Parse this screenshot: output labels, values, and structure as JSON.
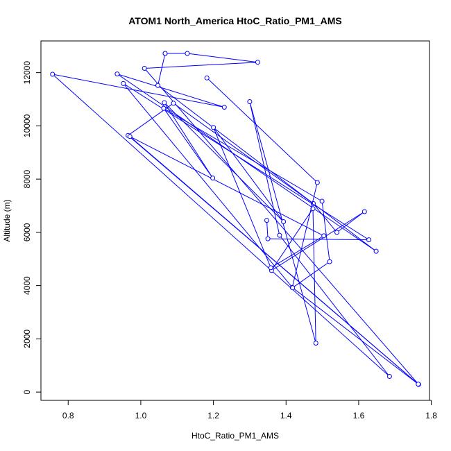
{
  "chart_data": {
    "type": "line",
    "title": "ATOM1 North_America HtoC_Ratio_PM1_AMS",
    "xlabel": "HtoC_Ratio_PM1_AMS",
    "ylabel": "Altitude (m)",
    "xlim": [
      0.725,
      1.795
    ],
    "ylim": [
      -310,
      13190
    ],
    "x_ticks": [
      0.8,
      1.0,
      1.2,
      1.4,
      1.6,
      1.8
    ],
    "x_tick_labels": [
      "0.8",
      "1.0",
      "1.2",
      "1.4",
      "1.6",
      "1.8"
    ],
    "y_ticks": [
      0,
      2000,
      4000,
      6000,
      8000,
      10000,
      12000
    ],
    "y_tick_labels": [
      "0",
      "2000",
      "4000",
      "6000",
      "8000",
      "10000",
      "12000"
    ],
    "grid": false,
    "series": [
      {
        "color": "#0000ff",
        "marker": "open-circle",
        "points": [
          {
            "x": 1.067,
            "y": 12720
          },
          {
            "x": 1.047,
            "y": 11520
          },
          {
            "x": 1.648,
            "y": 5290
          },
          {
            "x": 0.935,
            "y": 11950
          },
          {
            "x": 1.23,
            "y": 10700
          },
          {
            "x": 0.757,
            "y": 11940
          },
          {
            "x": 1.685,
            "y": 590
          },
          {
            "x": 1.382,
            "y": 5890
          },
          {
            "x": 1.3,
            "y": 10910
          },
          {
            "x": 1.482,
            "y": 1840
          },
          {
            "x": 1.474,
            "y": 6890
          },
          {
            "x": 1.36,
            "y": 4570
          },
          {
            "x": 1.616,
            "y": 6780
          },
          {
            "x": 1.54,
            "y": 6000
          },
          {
            "x": 1.475,
            "y": 7080
          },
          {
            "x": 1.09,
            "y": 10850
          },
          {
            "x": 0.965,
            "y": 9640
          },
          {
            "x": 1.765,
            "y": 290
          },
          {
            "x": 1.01,
            "y": 12160
          },
          {
            "x": 1.322,
            "y": 12390
          },
          {
            "x": 1.128,
            "y": 12720
          },
          {
            "x": 1.067,
            "y": 12720
          }
        ]
      },
      {
        "color": "#0000ff",
        "marker": "open-circle",
        "points": [
          {
            "x": 1.182,
            "y": 11800
          },
          {
            "x": 1.486,
            "y": 7870
          },
          {
            "x": 1.417,
            "y": 3930
          },
          {
            "x": 1.764,
            "y": 300
          },
          {
            "x": 0.97,
            "y": 9600
          },
          {
            "x": 1.504,
            "y": 5870
          },
          {
            "x": 1.358,
            "y": 4670
          },
          {
            "x": 1.2,
            "y": 9940
          },
          {
            "x": 1.393,
            "y": 6400
          },
          {
            "x": 1.065,
            "y": 10870
          },
          {
            "x": 1.198,
            "y": 8040
          },
          {
            "x": 1.063,
            "y": 10660
          },
          {
            "x": 1.499,
            "y": 7170
          },
          {
            "x": 1.52,
            "y": 4900
          },
          {
            "x": 1.418,
            "y": 3920
          },
          {
            "x": 0.952,
            "y": 11590
          },
          {
            "x": 1.628,
            "y": 5720
          },
          {
            "x": 1.35,
            "y": 5760
          },
          {
            "x": 1.347,
            "y": 6450
          }
        ]
      }
    ]
  }
}
